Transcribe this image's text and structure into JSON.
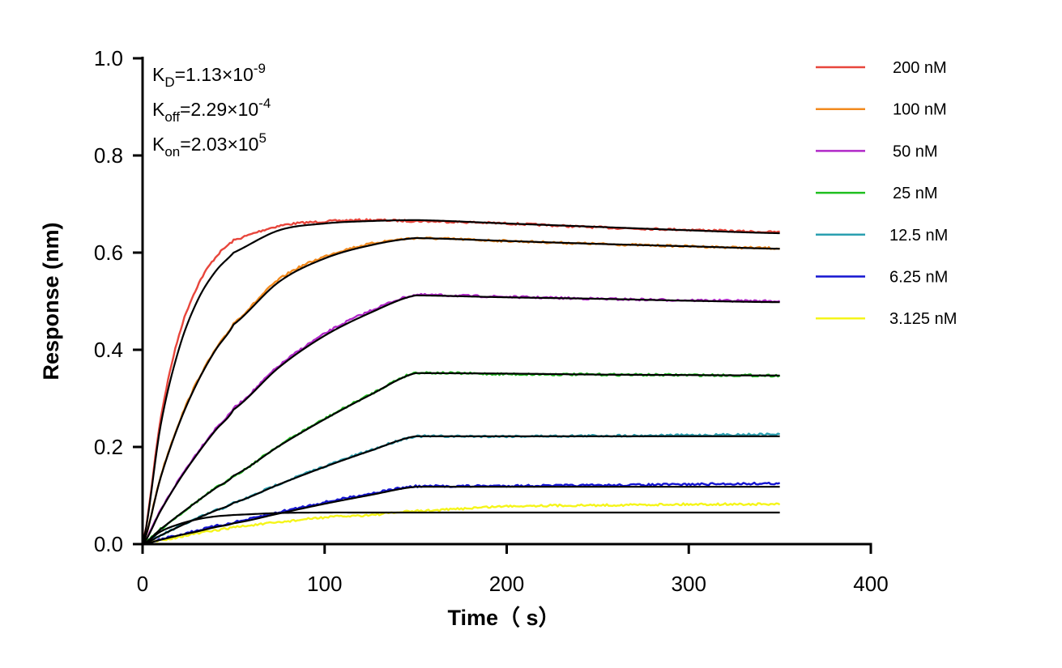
{
  "chart_data": {
    "type": "line",
    "xlabel": "Time（ s）",
    "ylabel": "Response (nm)",
    "xlim": [
      0,
      400
    ],
    "ylim": [
      0,
      1.0
    ],
    "xticks": [
      "0",
      "100",
      "200",
      "300",
      "400"
    ],
    "yticks": [
      "0.0",
      "0.2",
      "0.4",
      "0.6",
      "0.8",
      "1.0"
    ],
    "grid": false,
    "legend_position": "top-right",
    "annotations": [
      {
        "base": "K",
        "sub": "D",
        "text": "=1.13×10",
        "sup": "-9"
      },
      {
        "base": "K",
        "sub": "off",
        "text": "=2.29×10",
        "sup": "-4"
      },
      {
        "base": "K",
        "sub": "on",
        "text": "=2.03×10",
        "sup": "5"
      }
    ],
    "fit_color": "#000000",
    "series": [
      {
        "name": "200 nM",
        "color": "#e8463c",
        "measured": {
          "x": [
            0,
            10,
            20,
            30,
            40,
            50,
            75,
            100,
            125,
            150,
            200,
            250,
            300,
            350
          ],
          "y": [
            0,
            0.26,
            0.43,
            0.53,
            0.59,
            0.625,
            0.655,
            0.664,
            0.667,
            0.665,
            0.66,
            0.652,
            0.647,
            0.642
          ]
        },
        "fit": {
          "x": [
            0,
            10,
            20,
            30,
            40,
            50,
            75,
            100,
            125,
            150,
            200,
            250,
            300,
            350
          ],
          "y": [
            0,
            0.246,
            0.402,
            0.5,
            0.561,
            0.6,
            0.646,
            0.66,
            0.665,
            0.667,
            0.66,
            0.653,
            0.646,
            0.64
          ]
        }
      },
      {
        "name": "100 nM",
        "color": "#f28a1e",
        "measured": {
          "x": [
            0,
            10,
            20,
            30,
            40,
            50,
            75,
            100,
            125,
            150,
            200,
            250,
            300,
            350
          ],
          "y": [
            0,
            0.14,
            0.25,
            0.335,
            0.4,
            0.455,
            0.545,
            0.592,
            0.618,
            0.63,
            0.624,
            0.618,
            0.613,
            0.609
          ]
        },
        "fit": {
          "x": [
            0,
            10,
            20,
            30,
            40,
            50,
            75,
            100,
            125,
            150,
            200,
            250,
            300,
            350
          ],
          "y": [
            0,
            0.138,
            0.247,
            0.332,
            0.399,
            0.452,
            0.54,
            0.588,
            0.615,
            0.63,
            0.624,
            0.618,
            0.613,
            0.608
          ]
        }
      },
      {
        "name": "50 nM",
        "color": "#b027c8",
        "measured": {
          "x": [
            0,
            10,
            20,
            30,
            40,
            50,
            75,
            100,
            125,
            150,
            200,
            250,
            300,
            350
          ],
          "y": [
            0,
            0.07,
            0.133,
            0.188,
            0.237,
            0.28,
            0.367,
            0.433,
            0.48,
            0.513,
            0.509,
            0.505,
            0.502,
            0.5
          ]
        },
        "fit": {
          "x": [
            0,
            10,
            20,
            30,
            40,
            50,
            75,
            100,
            125,
            150,
            200,
            250,
            300,
            350
          ],
          "y": [
            0,
            0.069,
            0.131,
            0.185,
            0.234,
            0.277,
            0.364,
            0.429,
            0.476,
            0.512,
            0.508,
            0.505,
            0.501,
            0.498
          ]
        }
      },
      {
        "name": "25 nM",
        "color": "#1fbf1f",
        "measured": {
          "x": [
            0,
            10,
            20,
            30,
            40,
            50,
            75,
            100,
            125,
            150,
            200,
            250,
            300,
            350
          ],
          "y": [
            0,
            0.031,
            0.06,
            0.088,
            0.115,
            0.141,
            0.203,
            0.258,
            0.308,
            0.353,
            0.35,
            0.349,
            0.348,
            0.347
          ]
        },
        "fit": {
          "x": [
            0,
            10,
            20,
            30,
            40,
            50,
            75,
            100,
            125,
            150,
            200,
            250,
            300,
            350
          ],
          "y": [
            0,
            0.031,
            0.06,
            0.088,
            0.115,
            0.141,
            0.202,
            0.257,
            0.307,
            0.352,
            0.351,
            0.349,
            0.348,
            0.347
          ]
        }
      },
      {
        "name": "12.5 nM",
        "color": "#2a9fb0",
        "measured": {
          "x": [
            0,
            10,
            20,
            30,
            40,
            50,
            75,
            100,
            125,
            150,
            200,
            250,
            300,
            350
          ],
          "y": [
            0,
            0.018,
            0.036,
            0.053,
            0.069,
            0.085,
            0.124,
            0.16,
            0.193,
            0.222,
            0.222,
            0.223,
            0.224,
            0.226
          ]
        },
        "fit": {
          "x": [
            0,
            10,
            20,
            30,
            40,
            50,
            75,
            100,
            125,
            150,
            200,
            250,
            300,
            350
          ],
          "y": [
            0,
            0.018,
            0.036,
            0.053,
            0.069,
            0.085,
            0.123,
            0.159,
            0.192,
            0.222,
            0.222,
            0.222,
            0.222,
            0.222
          ]
        }
      },
      {
        "name": "6.25 nM",
        "color": "#1414d0",
        "measured": {
          "x": [
            0,
            10,
            20,
            30,
            40,
            50,
            75,
            100,
            125,
            150,
            200,
            250,
            300,
            350
          ],
          "y": [
            0,
            0.01,
            0.019,
            0.028,
            0.037,
            0.045,
            0.066,
            0.086,
            0.104,
            0.119,
            0.12,
            0.121,
            0.123,
            0.125
          ]
        },
        "fit": {
          "x": [
            0,
            10,
            20,
            30,
            40,
            50,
            75,
            100,
            125,
            150,
            200,
            250,
            300,
            350
          ],
          "y": [
            0,
            0.009,
            0.018,
            0.026,
            0.035,
            0.043,
            0.063,
            0.083,
            0.101,
            0.118,
            0.118,
            0.118,
            0.118,
            0.118
          ]
        }
      },
      {
        "name": "3.125 nM",
        "color": "#f5f51a",
        "measured": {
          "x": [
            0,
            10,
            20,
            30,
            40,
            50,
            75,
            100,
            125,
            150,
            200,
            250,
            300,
            350
          ],
          "y": [
            0,
            0.008,
            0.015,
            0.022,
            0.028,
            0.035,
            0.045,
            0.055,
            0.06,
            0.068,
            0.078,
            0.08,
            0.082,
            0.082
          ]
        },
        "fit": {
          "x": [
            0,
            10,
            20,
            30,
            40,
            50,
            75,
            100,
            125,
            150,
            200,
            250,
            300,
            350
          ],
          "y": [
            0,
            0.026,
            0.041,
            0.051,
            0.057,
            0.06,
            0.064,
            0.065,
            0.065,
            0.065,
            0.065,
            0.065,
            0.065,
            0.065
          ]
        }
      }
    ]
  }
}
